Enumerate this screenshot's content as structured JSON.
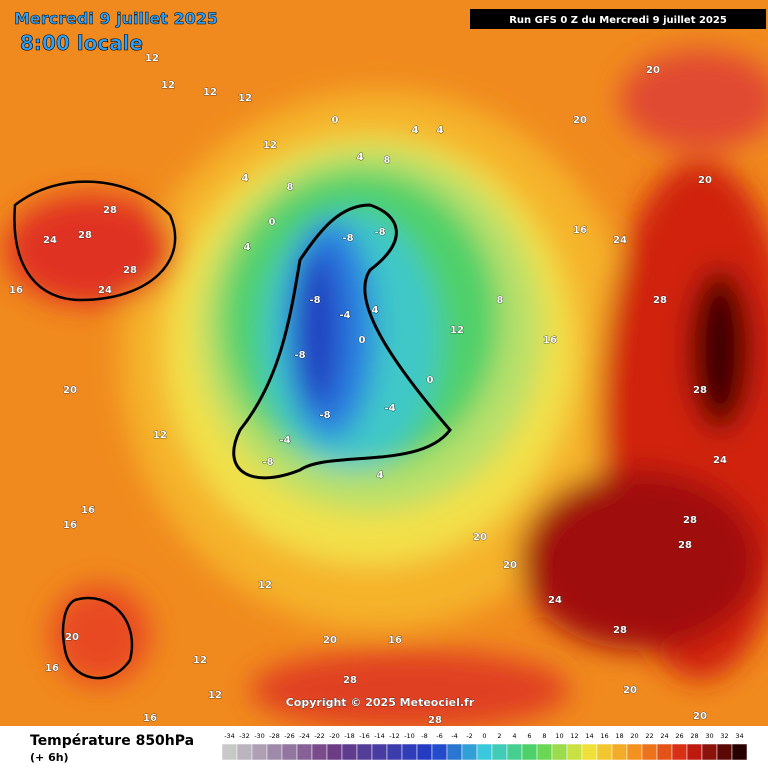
{
  "header": {
    "date": "Mercredi 9 juillet 2025",
    "time": "8:00 locale",
    "run": "Run GFS 0 Z du Mercredi 9 juillet 2025"
  },
  "map": {
    "copyright": "Copyright © 2025 Meteociel.fr",
    "labels": [
      12,
      12,
      12,
      12,
      12,
      0,
      4,
      8,
      4,
      4,
      4,
      8,
      0,
      4,
      -8,
      -8,
      -8,
      -4,
      0,
      4,
      12,
      -8,
      -8,
      -4,
      -8,
      -4,
      4,
      0,
      8,
      16,
      16,
      24,
      20,
      20,
      20,
      28,
      28,
      24,
      28,
      28,
      28,
      24,
      28,
      28,
      28,
      24,
      16,
      20,
      12,
      16,
      16,
      20,
      16,
      12,
      12,
      16,
      12,
      20,
      28,
      16,
      28,
      20,
      20,
      24,
      20,
      20
    ]
  },
  "legend": {
    "title": "Température 850hPa",
    "lead": "(+ 6h)",
    "scale": [
      -34,
      -32,
      -30,
      -28,
      -26,
      -24,
      -22,
      -20,
      -18,
      -16,
      -14,
      -12,
      -10,
      -8,
      -6,
      -4,
      -2,
      0,
      2,
      4,
      6,
      8,
      10,
      12,
      14,
      16,
      18,
      20,
      22,
      24,
      26,
      28,
      30,
      32,
      34
    ]
  }
}
